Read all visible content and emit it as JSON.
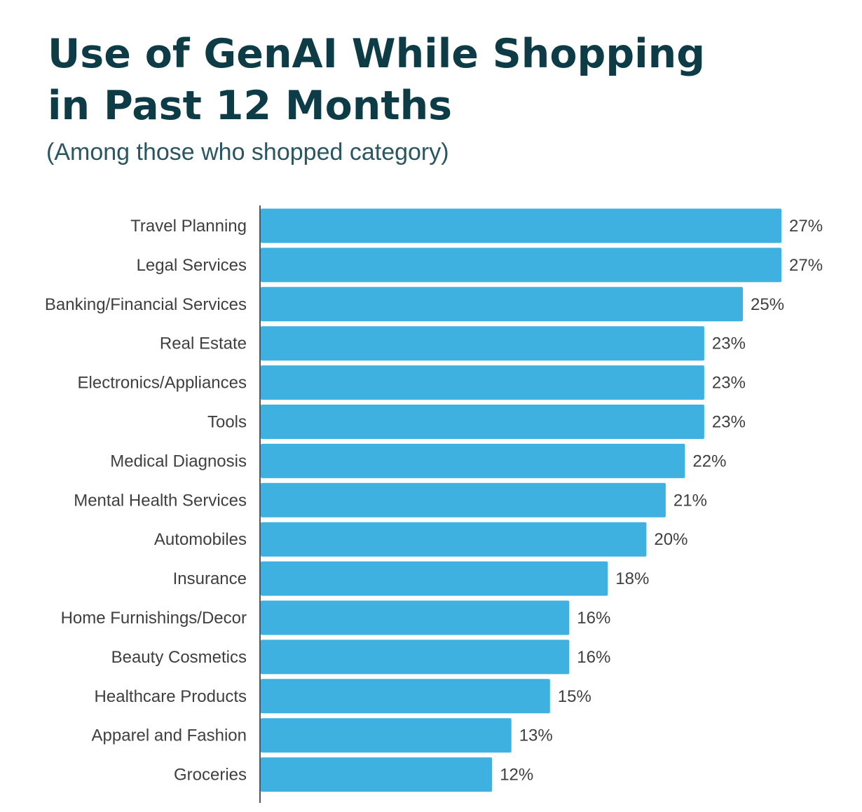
{
  "chart_data": {
    "type": "bar",
    "orientation": "horizontal",
    "title_lines": [
      "Use of GenAI While Shopping",
      "in Past 12 Months"
    ],
    "subtitle": "(Among those who shopped category)",
    "categories": [
      "Travel Planning",
      "Legal Services",
      "Banking/Financial Services",
      "Real Estate",
      "Electronics/Appliances",
      "Tools",
      "Medical Diagnosis",
      "Mental Health Services",
      "Automobiles",
      "Insurance",
      "Home Furnishings/Decor",
      "Beauty Cosmetics",
      "Healthcare Products",
      "Apparel and Fashion",
      "Groceries"
    ],
    "values": [
      27,
      27,
      25,
      23,
      23,
      23,
      22,
      21,
      20,
      18,
      16,
      16,
      15,
      13,
      12
    ],
    "value_suffix": "%",
    "xlim": [
      0,
      27
    ],
    "grid": false,
    "legend": "none",
    "bar_color": "#3eb1e1"
  }
}
